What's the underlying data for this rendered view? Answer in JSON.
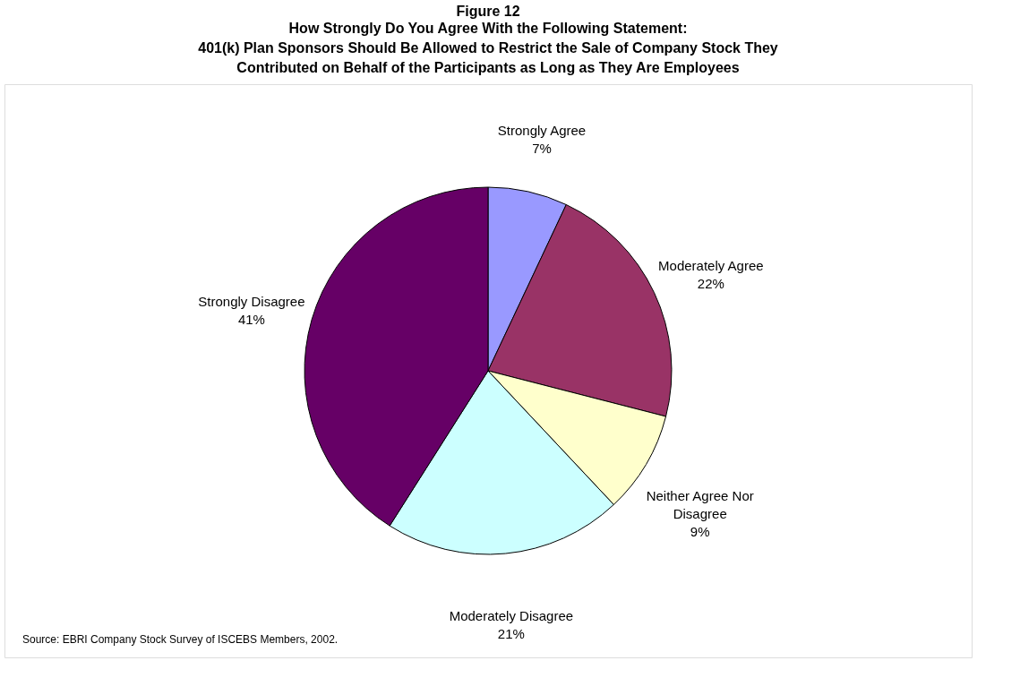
{
  "chart_data": {
    "type": "pie",
    "title": "Figure 12",
    "subtitle": "How Strongly Do You Agree With the Following Statement:\n401(k) Plan Sponsors Should Be Allowed to Restrict the Sale of Company Stock They\nContributed on Behalf of the Participants as Long as They Are Employees",
    "categories": [
      "Strongly Agree",
      "Moderately Agree",
      "Neither Agree Nor Disagree",
      "Moderately Disagree",
      "Strongly Disagree"
    ],
    "values": [
      7,
      22,
      9,
      21,
      41
    ],
    "value_labels": [
      "7%",
      "22%",
      "9%",
      "21%",
      "41%"
    ],
    "colors": [
      "#9999ff",
      "#993366",
      "#ffffcc",
      "#ccffff",
      "#660066"
    ],
    "annotations": [
      "Source: EBRI Company Stock Survey of ISCEBS Members, 2002."
    ],
    "legend": false
  }
}
